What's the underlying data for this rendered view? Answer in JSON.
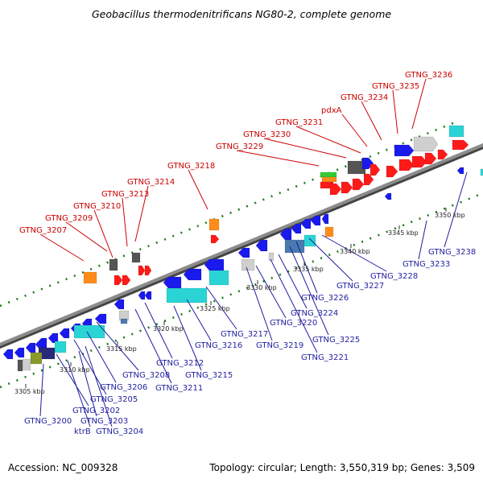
{
  "title": "Geobacillus thermodenitrificans NG80-2, complete genome",
  "footer": {
    "accession": "Accession: NC_009328",
    "summary": "Topology: circular; Length: 3,550,319 bp; Genes: 3,509"
  },
  "colors": {
    "top_label": "#cc0000",
    "bottom_label": "#1f1fa0",
    "backbone": "#8c8c8c",
    "dots": "#1e7a1e",
    "red": "#ff1a1a",
    "blue": "#1a1aee",
    "cyan": "#2ad4d4",
    "orange": "#ff8c1a",
    "gray": "#9a9a9a",
    "lightgray": "#cfcfcf",
    "darkgray": "#555555",
    "green": "#33cc33",
    "olive": "#8a9a2a",
    "steel": "#4a7ab0",
    "navy": "#2a2a7a"
  },
  "ticks": [
    "3305 kbp",
    "3310 kbp",
    "3315 kbp",
    "3320 kbp",
    "3325 kbp",
    "3330 kbp",
    "3335 kbp",
    "3340 kbp",
    "3345 kbp",
    "3350 kbp"
  ],
  "top_labels": [
    "GTNG_3207",
    "GTNG_3209",
    "GTNG_3210",
    "GTNG_3213",
    "GTNG_3214",
    "GTNG_3218",
    "GTNG_3229",
    "GTNG_3230",
    "GTNG_3231",
    "pdxA",
    "GTNG_3234",
    "GTNG_3235",
    "GTNG_3236"
  ],
  "bottom_labels": [
    "GTNG_3200",
    "ktrB",
    "GTNG_3202",
    "GTNG_3203",
    "GTNG_3204",
    "GTNG_3205",
    "GTNG_3206",
    "GTNG_3208",
    "GTNG_3211",
    "GTNG_3212",
    "GTNG_3215",
    "GTNG_3216",
    "GTNG_3217",
    "GTNG_3219",
    "GTNG_3220",
    "GTNG_3221",
    "GTNG_3224",
    "GTNG_3225",
    "GTNG_3226",
    "GTNG_3227",
    "GTNG_3228",
    "GTNG_3233",
    "GTNG_3238"
  ]
}
